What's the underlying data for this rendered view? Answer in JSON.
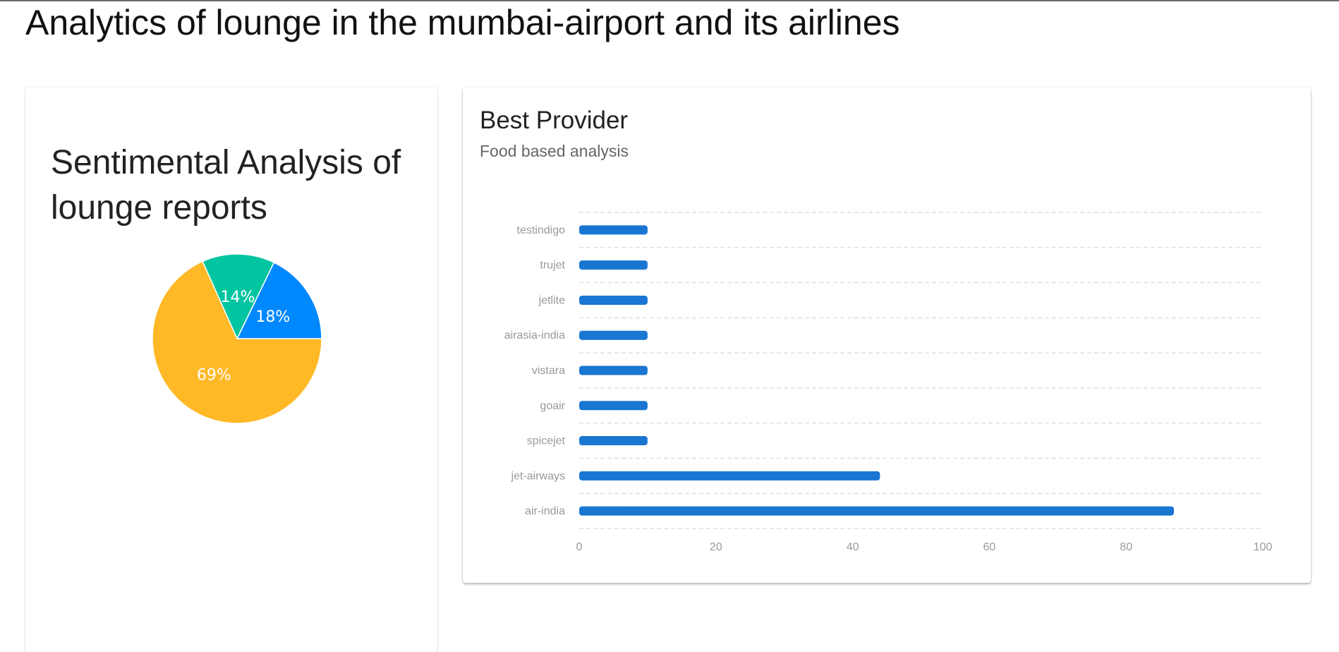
{
  "page": {
    "title": "Analytics of lounge in the mumbai-airport and its airlines"
  },
  "sentiment_card": {
    "title": "Sentimental Analysis of lounge reports"
  },
  "provider_card": {
    "title": "Best Provider",
    "subtitle": "Food based analysis"
  },
  "colors": {
    "pie_yellow": "#FFB927",
    "pie_green": "#00C5A0",
    "pie_blue": "#0088FF",
    "bar": "#1976D2",
    "grid": "#E0E0E0"
  },
  "chart_data": [
    {
      "type": "pie",
      "title": "",
      "slices": [
        {
          "label": "18%",
          "value": 18,
          "color": "#0088FF"
        },
        {
          "label": "14%",
          "value": 14,
          "color": "#00C5A0"
        },
        {
          "label": "69%",
          "value": 69,
          "color": "#FFB927"
        }
      ]
    },
    {
      "type": "bar",
      "orientation": "horizontal",
      "title": "Best Provider",
      "subtitle": "Food based analysis",
      "categories": [
        "testindigo",
        "trujet",
        "jetlite",
        "airasia-india",
        "vistara",
        "goair",
        "spicejet",
        "jet-airways",
        "air-india"
      ],
      "values": [
        10,
        10,
        10,
        10,
        10,
        10,
        10,
        44,
        87
      ],
      "xlim": [
        0,
        100
      ],
      "xticks": [
        "0",
        "20",
        "40",
        "60",
        "80",
        "100"
      ],
      "grid": true,
      "xlabel": "",
      "ylabel": ""
    }
  ]
}
